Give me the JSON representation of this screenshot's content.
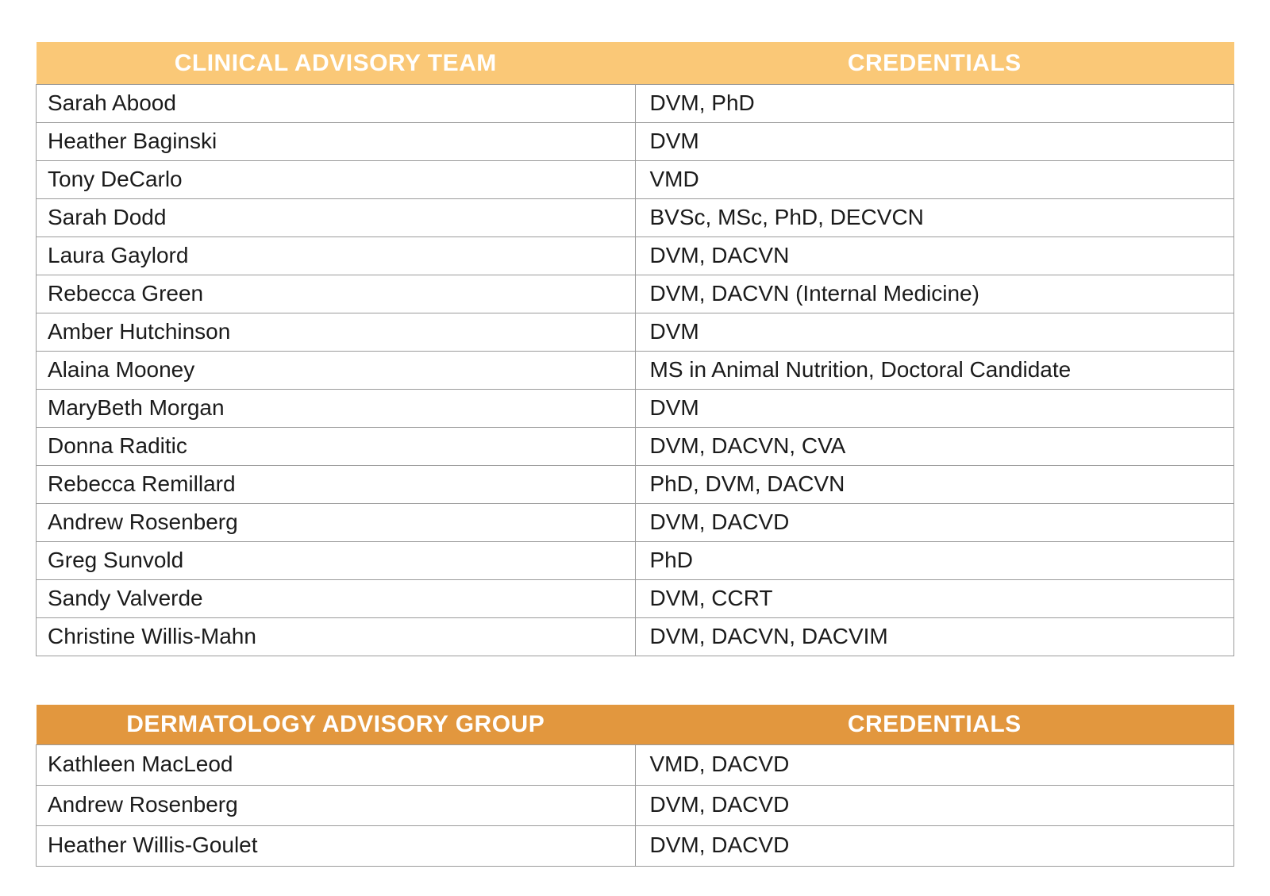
{
  "colors": {
    "table1_header_bg": "#FAC877",
    "table2_header_bg": "#E2973E",
    "header_text": "#FFFFFF",
    "cell_text": "#1B1B1B",
    "border": "#9B9B9B"
  },
  "tables": [
    {
      "title": "CLINICAL ADVISORY TEAM",
      "credentials_header": "CREDENTIALS",
      "rows": [
        {
          "name": "Sarah Abood",
          "credentials": "DVM, PhD"
        },
        {
          "name": "Heather Baginski",
          "credentials": "DVM"
        },
        {
          "name": "Tony DeCarlo",
          "credentials": "VMD"
        },
        {
          "name": "Sarah Dodd",
          "credentials": "BVSc, MSc, PhD, DECVCN"
        },
        {
          "name": "Laura Gaylord",
          "credentials": "DVM, DACVN"
        },
        {
          "name": "Rebecca Green",
          "credentials": "DVM, DACVN (Internal Medicine)"
        },
        {
          "name": "Amber Hutchinson",
          "credentials": "DVM"
        },
        {
          "name": "Alaina Mooney",
          "credentials": "MS in Animal Nutrition, Doctoral Candidate"
        },
        {
          "name": "MaryBeth Morgan",
          "credentials": "DVM"
        },
        {
          "name": "Donna Raditic",
          "credentials": "DVM, DACVN, CVA"
        },
        {
          "name": "Rebecca Remillard",
          "credentials": "PhD, DVM, DACVN"
        },
        {
          "name": "Andrew Rosenberg",
          "credentials": "DVM, DACVD"
        },
        {
          "name": "Greg Sunvold",
          "credentials": "PhD"
        },
        {
          "name": "Sandy Valverde",
          "credentials": "DVM, CCRT"
        },
        {
          "name": "Christine Willis-Mahn",
          "credentials": "DVM, DACVN, DACVIM"
        }
      ]
    },
    {
      "title": "DERMATOLOGY ADVISORY GROUP",
      "credentials_header": "CREDENTIALS",
      "rows": [
        {
          "name": "Kathleen MacLeod",
          "credentials": "VMD, DACVD"
        },
        {
          "name": "Andrew Rosenberg",
          "credentials": "DVM, DACVD"
        },
        {
          "name": "Heather Willis-Goulet",
          "credentials": "DVM, DACVD"
        }
      ]
    }
  ]
}
